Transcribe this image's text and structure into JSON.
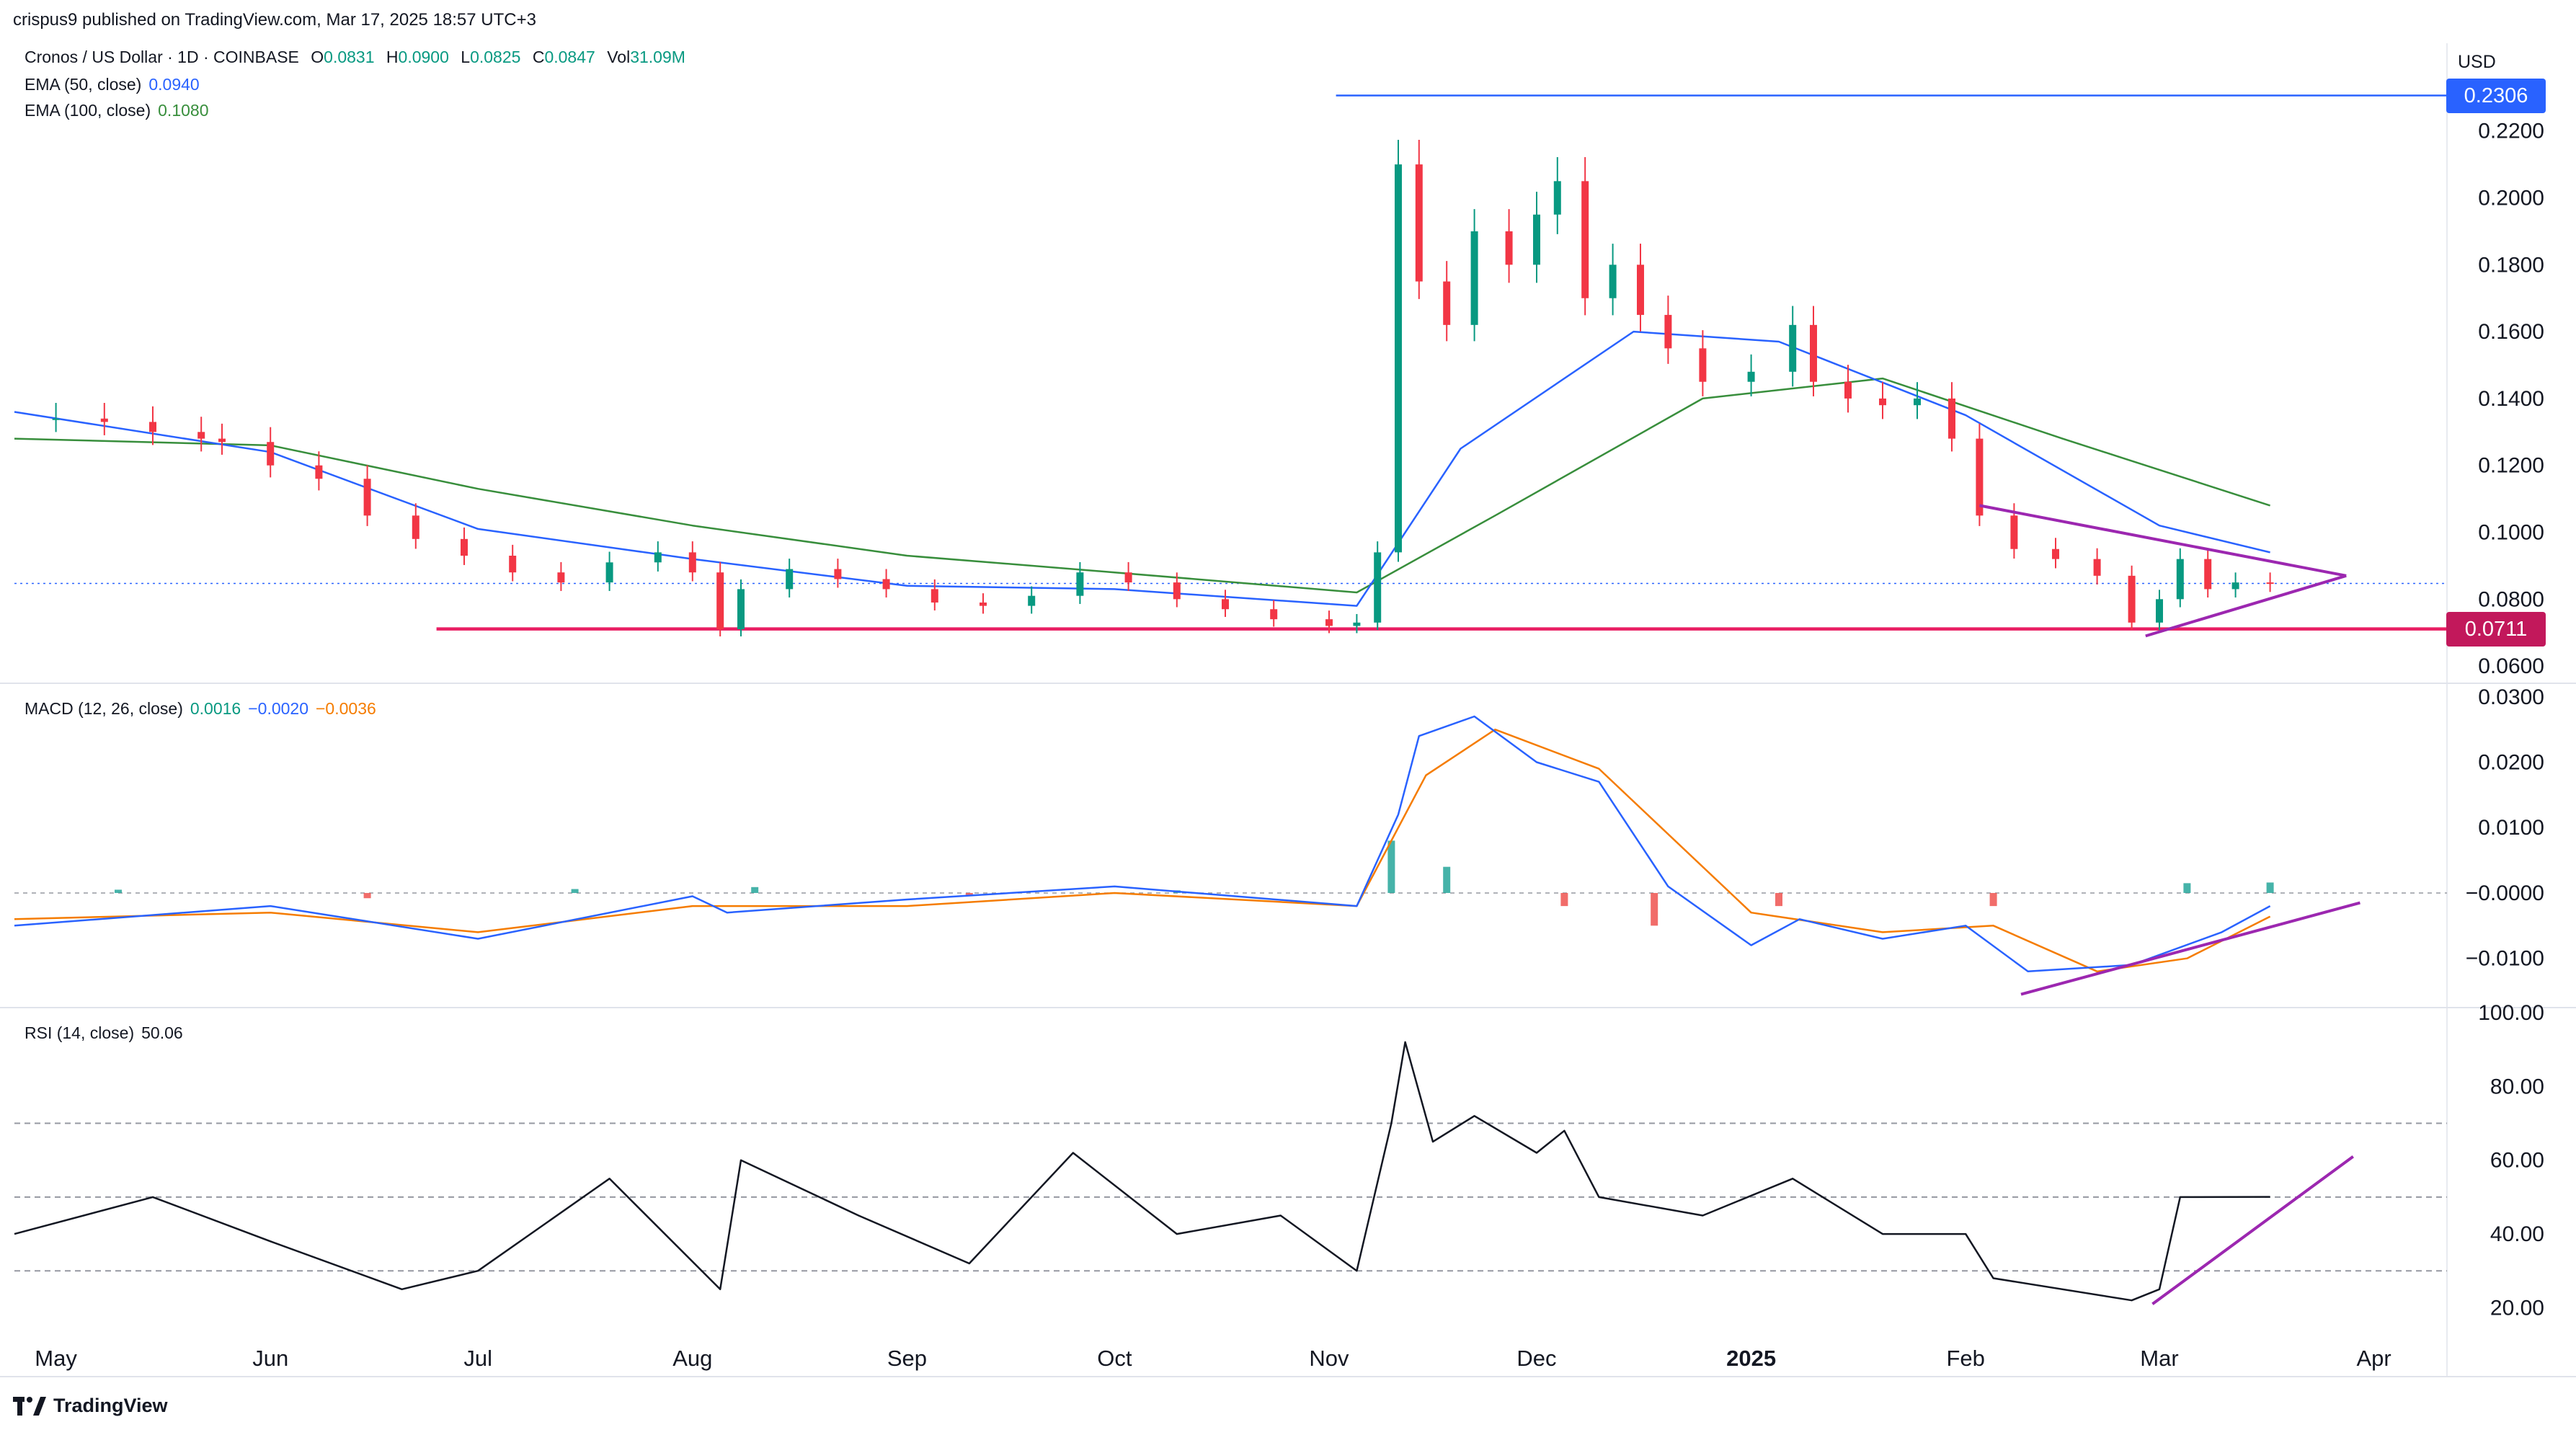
{
  "header": {
    "publisher_line": "crispus9 published on TradingView.com, Mar 17, 2025 18:57 UTC+3"
  },
  "symbol": {
    "name": "Cronos / US Dollar · 1D · COINBASE",
    "open_label": "O",
    "open": "0.0831",
    "high_label": "H",
    "high": "0.0900",
    "low_label": "L",
    "low": "0.0825",
    "close_label": "C",
    "close": "0.0847",
    "vol_label": "Vol",
    "volume": "31.09",
    "vol_unit": "M"
  },
  "indicators": {
    "ema50": {
      "label": "EMA (50, close)",
      "value": "0.0940",
      "color": "#2962ff"
    },
    "ema100": {
      "label": "EMA (100, close)",
      "value": "0.1080",
      "color": "#388e3c"
    },
    "macd": {
      "label": "MACD (12, 26, close)",
      "hist": "0.0016",
      "macd": "−0.0020",
      "signal": "−0.0036",
      "hist_color": "#089981",
      "macd_color": "#2962ff",
      "signal_color": "#f57c00"
    },
    "rsi": {
      "label": "RSI (14, close)",
      "value": "50.06",
      "color": "#131722"
    }
  },
  "currency_label": "USD",
  "price_tags": {
    "high_level": "0.2306",
    "support_level": "0.0711",
    "high_color": "#2962ff",
    "support_color": "#c2185b"
  },
  "brand": {
    "name": "TradingView",
    "icon": "tradingview-logo-icon"
  },
  "chart_data": [
    {
      "type": "candlestick",
      "title": "Cronos / US Dollar · 1D · COINBASE",
      "x_ticks": [
        "May",
        "Jun",
        "Jul",
        "Aug",
        "Sep",
        "Oct",
        "Nov",
        "Dec",
        "2025",
        "Feb",
        "Mar",
        "Apr"
      ],
      "y_ticks": [
        "0.0600",
        "0.0800",
        "0.1000",
        "0.1200",
        "0.1400",
        "0.1600",
        "0.1800",
        "0.2000",
        "0.2200"
      ],
      "ylim": [
        0.0555,
        0.243
      ],
      "close_series": [
        [
          "2024-04-25",
          0.134
        ],
        [
          "2024-05-01",
          0.134
        ],
        [
          "2024-05-08",
          0.133
        ],
        [
          "2024-05-15",
          0.13
        ],
        [
          "2024-05-22",
          0.128
        ],
        [
          "2024-05-25",
          0.127
        ],
        [
          "2024-06-01",
          0.12
        ],
        [
          "2024-06-08",
          0.116
        ],
        [
          "2024-06-15",
          0.105
        ],
        [
          "2024-06-22",
          0.098
        ],
        [
          "2024-06-29",
          0.093
        ],
        [
          "2024-07-06",
          0.088
        ],
        [
          "2024-07-13",
          0.085
        ],
        [
          "2024-07-20",
          0.091
        ],
        [
          "2024-07-27",
          0.094
        ],
        [
          "2024-08-01",
          0.088
        ],
        [
          "2024-08-05",
          0.071
        ],
        [
          "2024-08-08",
          0.083
        ],
        [
          "2024-08-15",
          0.089
        ],
        [
          "2024-08-22",
          0.086
        ],
        [
          "2024-08-29",
          0.083
        ],
        [
          "2024-09-05",
          0.079
        ],
        [
          "2024-09-12",
          0.078
        ],
        [
          "2024-09-19",
          0.081
        ],
        [
          "2024-09-26",
          0.088
        ],
        [
          "2024-10-03",
          0.085
        ],
        [
          "2024-10-10",
          0.08
        ],
        [
          "2024-10-17",
          0.077
        ],
        [
          "2024-10-24",
          0.074
        ],
        [
          "2024-11-01",
          0.072
        ],
        [
          "2024-11-05",
          0.073
        ],
        [
          "2024-11-08",
          0.094
        ],
        [
          "2024-11-11",
          0.21
        ],
        [
          "2024-11-14",
          0.175
        ],
        [
          "2024-11-18",
          0.162
        ],
        [
          "2024-11-22",
          0.19
        ],
        [
          "2024-11-27",
          0.18
        ],
        [
          "2024-12-01",
          0.195
        ],
        [
          "2024-12-04",
          0.205
        ],
        [
          "2024-12-08",
          0.17
        ],
        [
          "2024-12-12",
          0.18
        ],
        [
          "2024-12-16",
          0.165
        ],
        [
          "2024-12-20",
          0.155
        ],
        [
          "2024-12-25",
          0.145
        ],
        [
          "2025-01-01",
          0.148
        ],
        [
          "2025-01-07",
          0.162
        ],
        [
          "2025-01-10",
          0.145
        ],
        [
          "2025-01-15",
          0.14
        ],
        [
          "2025-01-20",
          0.138
        ],
        [
          "2025-01-25",
          0.14
        ],
        [
          "2025-01-30",
          0.128
        ],
        [
          "2025-02-03",
          0.105
        ],
        [
          "2025-02-08",
          0.095
        ],
        [
          "2025-02-14",
          0.092
        ],
        [
          "2025-02-20",
          0.087
        ],
        [
          "2025-02-25",
          0.073
        ],
        [
          "2025-03-01",
          0.08
        ],
        [
          "2025-03-04",
          0.092
        ],
        [
          "2025-03-08",
          0.083
        ],
        [
          "2025-03-12",
          0.085
        ],
        [
          "2025-03-17",
          0.0847
        ]
      ],
      "ema50_series": [
        [
          "2024-04-25",
          0.136
        ],
        [
          "2024-06-01",
          0.124
        ],
        [
          "2024-07-01",
          0.101
        ],
        [
          "2024-08-01",
          0.092
        ],
        [
          "2024-09-01",
          0.084
        ],
        [
          "2024-10-01",
          0.083
        ],
        [
          "2024-11-05",
          0.078
        ],
        [
          "2024-11-20",
          0.125
        ],
        [
          "2024-12-15",
          0.16
        ],
        [
          "2025-01-05",
          0.157
        ],
        [
          "2025-02-01",
          0.135
        ],
        [
          "2025-03-01",
          0.102
        ],
        [
          "2025-03-17",
          0.094
        ]
      ],
      "ema100_series": [
        [
          "2024-04-25",
          0.128
        ],
        [
          "2024-06-01",
          0.126
        ],
        [
          "2024-07-01",
          0.113
        ],
        [
          "2024-08-01",
          0.102
        ],
        [
          "2024-09-01",
          0.093
        ],
        [
          "2024-10-01",
          0.088
        ],
        [
          "2024-11-05",
          0.082
        ],
        [
          "2024-11-25",
          0.105
        ],
        [
          "2024-12-25",
          0.14
        ],
        [
          "2025-01-20",
          0.146
        ],
        [
          "2025-02-15",
          0.128
        ],
        [
          "2025-03-17",
          0.108
        ]
      ],
      "annotations": {
        "resistance": 0.2306,
        "support": 0.0711,
        "last_price": 0.0847,
        "triangle_upper": [
          [
            "2025-02-03",
            0.108
          ],
          [
            "2025-03-28",
            0.087
          ]
        ],
        "triangle_lower": [
          [
            "2025-02-27",
            0.069
          ],
          [
            "2025-03-28",
            0.087
          ]
        ]
      }
    },
    {
      "type": "line",
      "title": "MACD (12, 26, close)",
      "y_ticks": [
        "−0.0100",
        "−0.0000",
        "0.0100",
        "0.0200",
        "0.0300"
      ],
      "ylim": [
        -0.0172,
        0.0302
      ],
      "macd_series": [
        [
          "2024-04-25",
          -0.005
        ],
        [
          "2024-06-01",
          -0.002
        ],
        [
          "2024-07-01",
          -0.007
        ],
        [
          "2024-08-01",
          -0.0005
        ],
        [
          "2024-08-06",
          -0.003
        ],
        [
          "2024-09-01",
          -0.001
        ],
        [
          "2024-10-01",
          0.001
        ],
        [
          "2024-11-05",
          -0.002
        ],
        [
          "2024-11-11",
          0.012
        ],
        [
          "2024-11-14",
          0.024
        ],
        [
          "2024-11-22",
          0.027
        ],
        [
          "2024-12-01",
          0.02
        ],
        [
          "2024-12-10",
          0.017
        ],
        [
          "2024-12-20",
          0.001
        ],
        [
          "2025-01-01",
          -0.008
        ],
        [
          "2025-01-08",
          -0.004
        ],
        [
          "2025-01-20",
          -0.007
        ],
        [
          "2025-02-01",
          -0.005
        ],
        [
          "2025-02-10",
          -0.012
        ],
        [
          "2025-02-25",
          -0.011
        ],
        [
          "2025-03-10",
          -0.006
        ],
        [
          "2025-03-17",
          -0.002
        ]
      ],
      "signal_series": [
        [
          "2024-04-25",
          -0.004
        ],
        [
          "2024-06-01",
          -0.003
        ],
        [
          "2024-07-01",
          -0.006
        ],
        [
          "2024-08-01",
          -0.002
        ],
        [
          "2024-09-01",
          -0.002
        ],
        [
          "2024-10-01",
          0.0
        ],
        [
          "2024-11-05",
          -0.002
        ],
        [
          "2024-11-15",
          0.018
        ],
        [
          "2024-11-25",
          0.025
        ],
        [
          "2024-12-10",
          0.019
        ],
        [
          "2025-01-01",
          -0.003
        ],
        [
          "2025-01-20",
          -0.006
        ],
        [
          "2025-02-05",
          -0.005
        ],
        [
          "2025-02-20",
          -0.012
        ],
        [
          "2025-03-05",
          -0.01
        ],
        [
          "2025-03-17",
          -0.0036
        ]
      ],
      "histogram_series": [
        [
          "2024-05-10",
          0.0005
        ],
        [
          "2024-06-15",
          -0.0008
        ],
        [
          "2024-07-15",
          0.0006
        ],
        [
          "2024-08-10",
          0.0009
        ],
        [
          "2024-09-10",
          -0.0005
        ],
        [
          "2024-10-10",
          0.0004
        ],
        [
          "2024-11-10",
          0.008
        ],
        [
          "2024-11-18",
          0.004
        ],
        [
          "2024-12-05",
          -0.002
        ],
        [
          "2024-12-18",
          -0.005
        ],
        [
          "2025-01-05",
          -0.002
        ],
        [
          "2025-02-05",
          -0.002
        ],
        [
          "2025-03-05",
          0.0015
        ],
        [
          "2025-03-17",
          0.0016
        ]
      ],
      "annotations": {
        "trend_line": [
          [
            "2025-02-09",
            -0.0155
          ],
          [
            "2025-03-30",
            -0.0015
          ]
        ]
      }
    },
    {
      "type": "line",
      "title": "RSI (14, close)",
      "y_ticks": [
        "20.00",
        "40.00",
        "60.00",
        "80.00",
        "100.00"
      ],
      "ylim": [
        15,
        100
      ],
      "levels": [
        70,
        50,
        30
      ],
      "series": [
        [
          "2024-04-25",
          40
        ],
        [
          "2024-05-15",
          50
        ],
        [
          "2024-06-01",
          38
        ],
        [
          "2024-06-20",
          25
        ],
        [
          "2024-07-01",
          30
        ],
        [
          "2024-07-20",
          55
        ],
        [
          "2024-08-05",
          25
        ],
        [
          "2024-08-08",
          60
        ],
        [
          "2024-08-25",
          45
        ],
        [
          "2024-09-10",
          32
        ],
        [
          "2024-09-25",
          62
        ],
        [
          "2024-10-10",
          40
        ],
        [
          "2024-10-25",
          45
        ],
        [
          "2024-11-05",
          30
        ],
        [
          "2024-11-10",
          70
        ],
        [
          "2024-11-12",
          92
        ],
        [
          "2024-11-16",
          65
        ],
        [
          "2024-11-22",
          72
        ],
        [
          "2024-12-01",
          62
        ],
        [
          "2024-12-05",
          68
        ],
        [
          "2024-12-10",
          50
        ],
        [
          "2024-12-25",
          45
        ],
        [
          "2025-01-07",
          55
        ],
        [
          "2025-01-20",
          40
        ],
        [
          "2025-02-01",
          40
        ],
        [
          "2025-02-05",
          28
        ],
        [
          "2025-02-25",
          22
        ],
        [
          "2025-03-01",
          25
        ],
        [
          "2025-03-04",
          50
        ],
        [
          "2025-03-17",
          50.06
        ]
      ],
      "annotations": {
        "trend_line": [
          [
            "2025-02-28",
            21
          ],
          [
            "2025-03-29",
            61
          ]
        ]
      }
    }
  ]
}
